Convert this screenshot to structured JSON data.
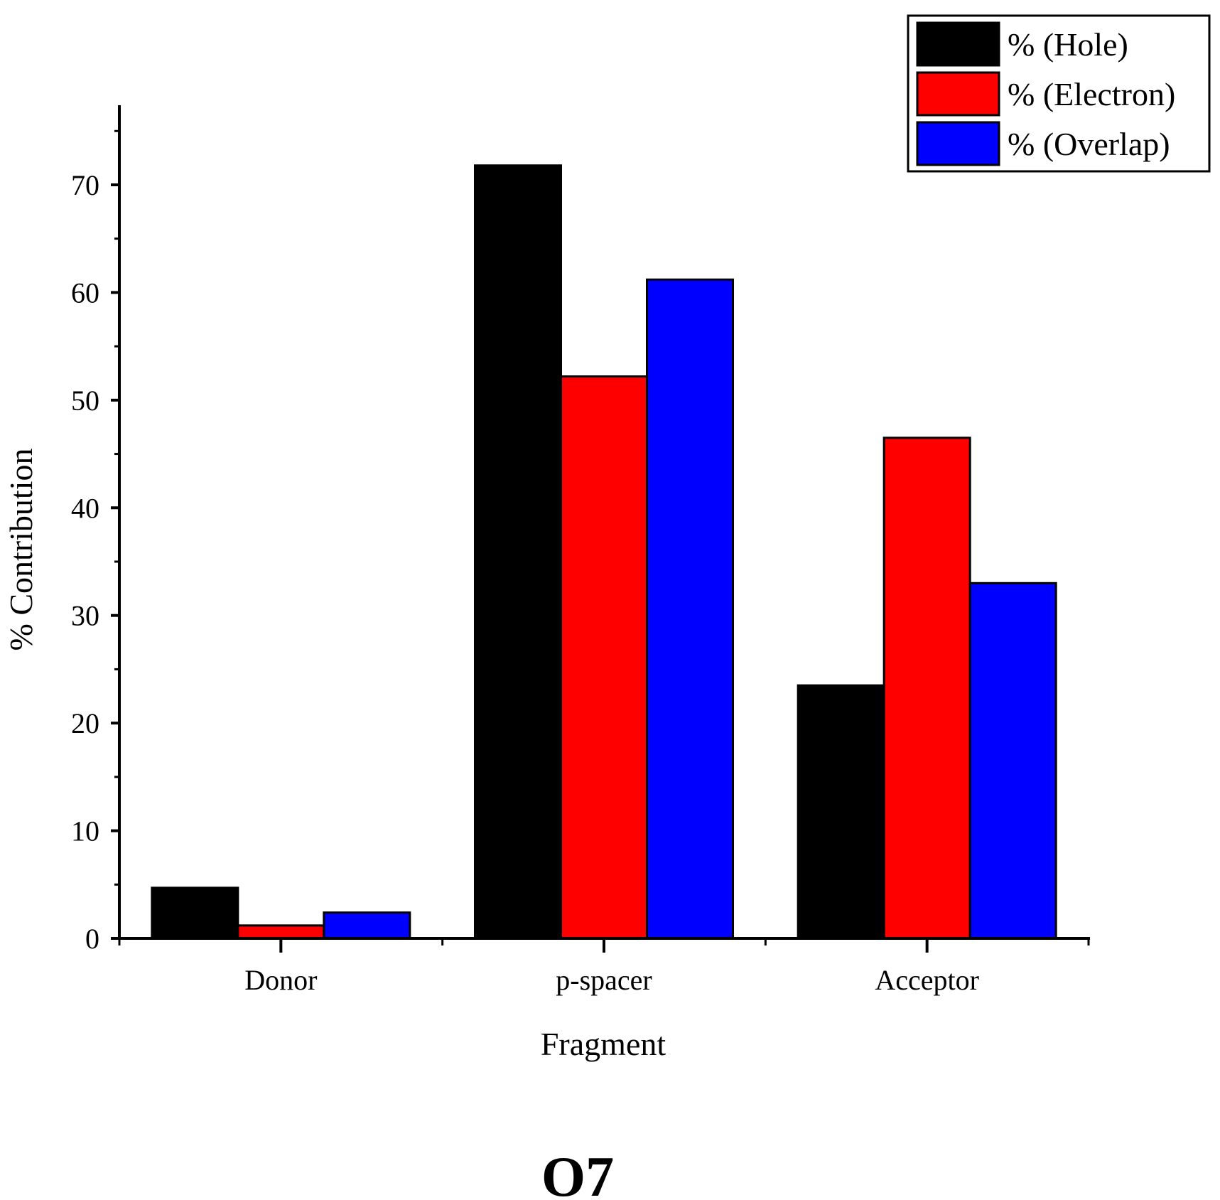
{
  "chart_data": {
    "type": "bar",
    "title": "O7",
    "xlabel": "Fragment",
    "ylabel": "% Contribution",
    "categories": [
      "Donor",
      "p-spacer",
      "Acceptor"
    ],
    "ylim": [
      0,
      77
    ],
    "yticks": [
      0,
      10,
      20,
      30,
      40,
      50,
      60,
      70
    ],
    "grid": false,
    "legend_position": "top-right",
    "series": [
      {
        "name": "% (Hole)",
        "color": "#000000",
        "values": [
          4.7,
          71.8,
          23.5
        ]
      },
      {
        "name": "% (Electron)",
        "color": "#ff0000",
        "values": [
          1.2,
          52.2,
          46.5
        ]
      },
      {
        "name": "% (Overlap)",
        "color": "#0000ff",
        "values": [
          2.4,
          61.2,
          33.0
        ]
      }
    ]
  }
}
